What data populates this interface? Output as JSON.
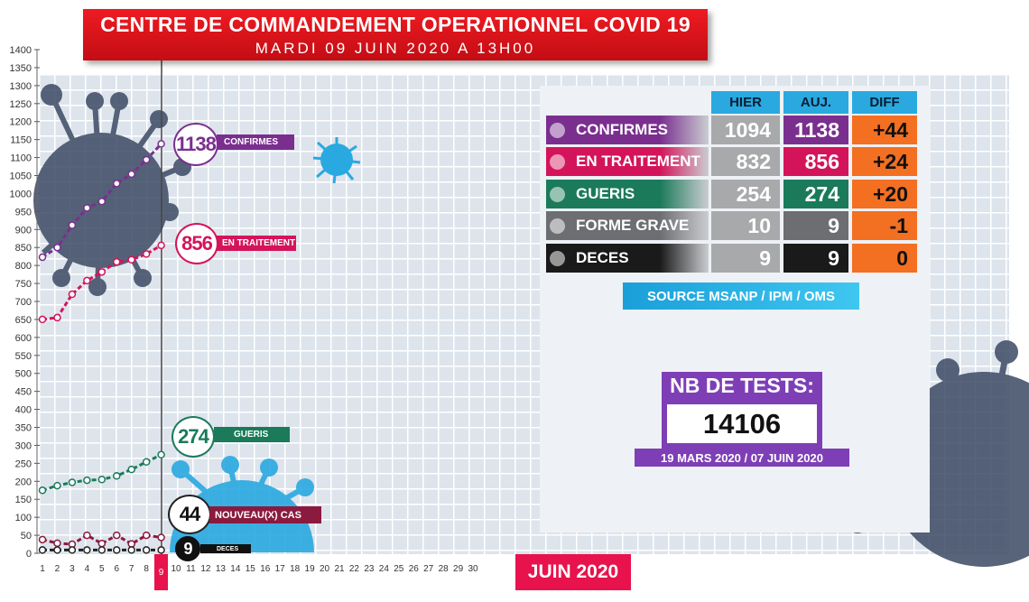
{
  "header": {
    "title": "CENTRE DE COMMANDEMENT OPERATIONNEL COVID 19",
    "subtitle": "MARDI 09 JUIN 2020 A 13H00"
  },
  "chart_data": {
    "type": "line",
    "xlabel": "JUIN 2020",
    "x": [
      1,
      2,
      3,
      4,
      5,
      6,
      7,
      8,
      9
    ],
    "x_ticks": [
      "1",
      "2",
      "3",
      "4",
      "5",
      "6",
      "7",
      "8",
      "9",
      "10",
      "11",
      "12",
      "13",
      "14",
      "15",
      "16",
      "17",
      "18",
      "19",
      "20",
      "21",
      "22",
      "23",
      "24",
      "25",
      "26",
      "27",
      "28",
      "29",
      "30"
    ],
    "xlim": [
      1,
      30
    ],
    "ylim": [
      0,
      1400
    ],
    "y_ticks": [
      0,
      50,
      100,
      150,
      200,
      250,
      300,
      350,
      400,
      450,
      500,
      550,
      600,
      650,
      700,
      750,
      800,
      850,
      900,
      950,
      1000,
      1050,
      1100,
      1150,
      1200,
      1250,
      1300,
      1350,
      1400
    ],
    "grid": true,
    "highlight_x": "9",
    "series": [
      {
        "name": "CONFIRMES",
        "label_value": "1138",
        "color": "#7a2f8f",
        "values": [
          823,
          850,
          912,
          960,
          978,
          1028,
          1054,
          1094,
          1138
        ]
      },
      {
        "name": "EN TRAITEMENT",
        "label_value": "856",
        "color": "#d4145a",
        "values": [
          650,
          655,
          720,
          758,
          782,
          810,
          816,
          832,
          856
        ]
      },
      {
        "name": "GUERIS",
        "label_value": "274",
        "color": "#1b7a5a",
        "values": [
          175,
          188,
          197,
          203,
          205,
          215,
          233,
          254,
          274
        ]
      },
      {
        "name": "NOUVEAU(X) CAS",
        "label_value": "44",
        "color": "#8b1a3f",
        "values": [
          38,
          28,
          25,
          50,
          27,
          50,
          26,
          50,
          44
        ]
      },
      {
        "name": "DECES",
        "label_value": "9",
        "color": "#222222",
        "values": [
          9,
          9,
          9,
          9,
          9,
          9,
          9,
          9,
          9
        ]
      }
    ]
  },
  "table": {
    "headers": [
      "HIER",
      "AUJ.",
      "DIFF"
    ],
    "rows": [
      {
        "label": "CONFIRMES",
        "hier": "1094",
        "auj": "1138",
        "diff": "+44",
        "color": "#7a2f8f"
      },
      {
        "label": "EN TRAITEMENT",
        "hier": "832",
        "auj": "856",
        "diff": "+24",
        "color": "#d4145a"
      },
      {
        "label": "GUERIS",
        "hier": "254",
        "auj": "274",
        "diff": "+20",
        "color": "#1b7a5a"
      },
      {
        "label": "FORME GRAVE",
        "hier": "10",
        "auj": "9",
        "diff": "-1",
        "color": "#6d6e71"
      },
      {
        "label": "DECES",
        "hier": "9",
        "auj": "9",
        "diff": "0",
        "color": "#1a1a1a"
      }
    ],
    "source": "SOURCE MSANP / IPM / OMS"
  },
  "tests": {
    "label": "NB DE TESTS:",
    "value": "14106",
    "period": "19 MARS 2020 / 07 JUIN 2020"
  }
}
